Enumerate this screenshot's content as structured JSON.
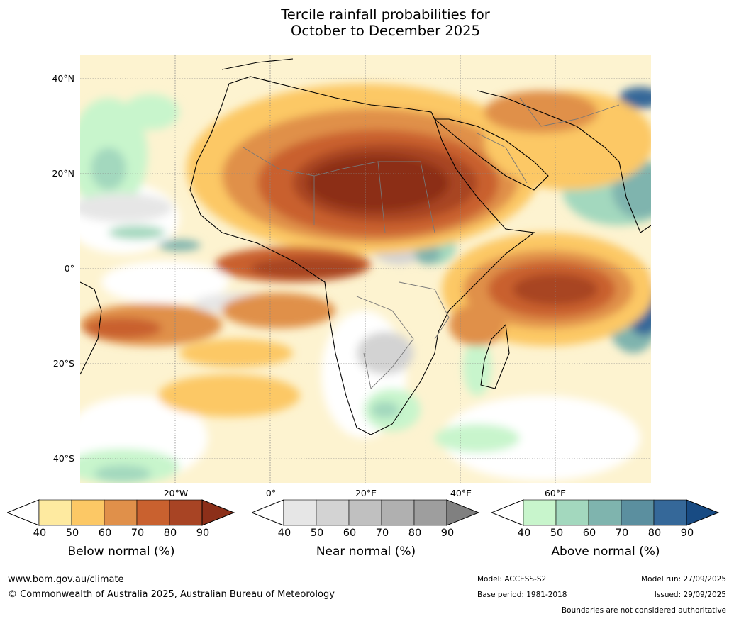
{
  "title": {
    "line1": "Tercile rainfall probabilities for",
    "line2": "October to December 2025"
  },
  "map": {
    "region": "Africa and surrounding oceans",
    "lat_labels": [
      "40°N",
      "20°N",
      "0°",
      "20°S",
      "40°S"
    ],
    "lon_labels": [
      "20°W",
      "0°",
      "20°E",
      "40°E",
      "60°E"
    ]
  },
  "colorbars": [
    {
      "name": "below",
      "label": "Below normal (%)",
      "ticks": [
        "40",
        "50",
        "60",
        "70",
        "80",
        "90"
      ],
      "colors": [
        "#ffffff",
        "#feeaa0",
        "#fcc865",
        "#e0904a",
        "#c9612f",
        "#a84424",
        "#8c2f19"
      ]
    },
    {
      "name": "near",
      "label": "Near normal (%)",
      "ticks": [
        "40",
        "50",
        "60",
        "70",
        "80",
        "90"
      ],
      "colors": [
        "#ffffff",
        "#e6e6e6",
        "#d3d3d3",
        "#c0c0c0",
        "#b0b0b0",
        "#9e9e9e",
        "#808080"
      ]
    },
    {
      "name": "above",
      "label": "Above normal (%)",
      "ticks": [
        "40",
        "50",
        "60",
        "70",
        "80",
        "90"
      ],
      "colors": [
        "#ffffff",
        "#c8f5cc",
        "#a3d8be",
        "#7fb4ae",
        "#5b8f9f",
        "#356899",
        "#184b83"
      ]
    }
  ],
  "footer": {
    "website": "www.bom.gov.au/climate",
    "copyright": "© Commonwealth of Australia 2025, Australian Bureau of Meteorology",
    "model": "Model: ACCESS-S2",
    "base_period": "Base period: 1981-2018",
    "model_run": "Model run: 27/09/2025",
    "issued": "Issued: 29/09/2025",
    "boundaries_note": "Boundaries are not considered authoritative"
  }
}
